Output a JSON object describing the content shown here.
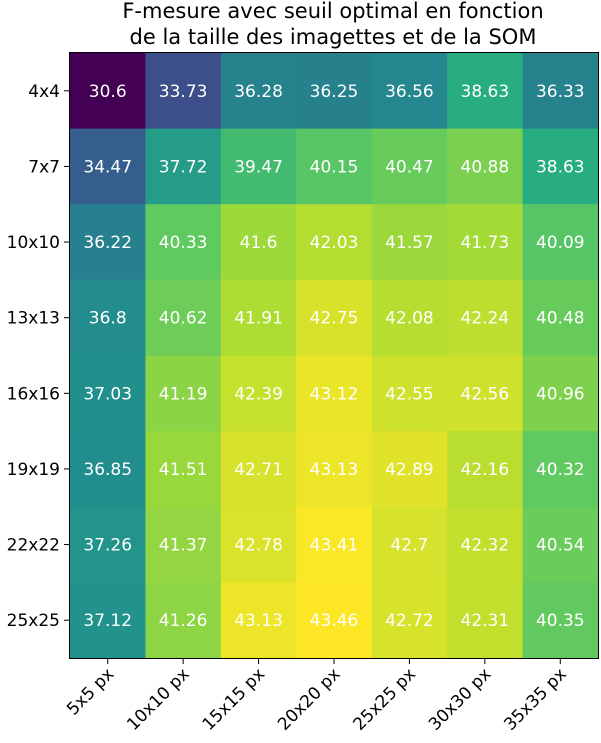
{
  "chart_data": {
    "type": "heatmap",
    "title_lines": [
      "F-mesure avec seuil optimal en fonction",
      "de la taille des imagettes et de la SOM"
    ],
    "x_categories": [
      "5x5 px",
      "10x10 px",
      "15x15 px",
      "20x20 px",
      "25x25 px",
      "30x30 px",
      "35x35 px"
    ],
    "y_categories": [
      "4x4",
      "7x7",
      "10x10",
      "13x13",
      "16x16",
      "19x19",
      "22x22",
      "25x25"
    ],
    "values": [
      [
        30.6,
        33.73,
        36.28,
        36.25,
        36.56,
        38.63,
        36.33
      ],
      [
        34.47,
        37.72,
        39.47,
        40.15,
        40.47,
        40.88,
        38.63
      ],
      [
        36.22,
        40.33,
        41.6,
        42.03,
        41.57,
        41.73,
        40.09
      ],
      [
        36.8,
        40.62,
        41.91,
        42.75,
        42.08,
        42.24,
        40.48
      ],
      [
        37.03,
        41.19,
        42.39,
        43.12,
        42.55,
        42.56,
        40.96
      ],
      [
        36.85,
        41.51,
        42.71,
        43.13,
        42.89,
        42.16,
        40.32
      ],
      [
        37.26,
        41.37,
        42.78,
        43.41,
        42.7,
        42.32,
        40.54
      ],
      [
        37.12,
        41.26,
        43.13,
        43.46,
        42.72,
        42.31,
        40.35
      ]
    ],
    "colormap": "viridis",
    "value_range": [
      30.6,
      43.46
    ],
    "xlabel": "",
    "ylabel": ""
  }
}
